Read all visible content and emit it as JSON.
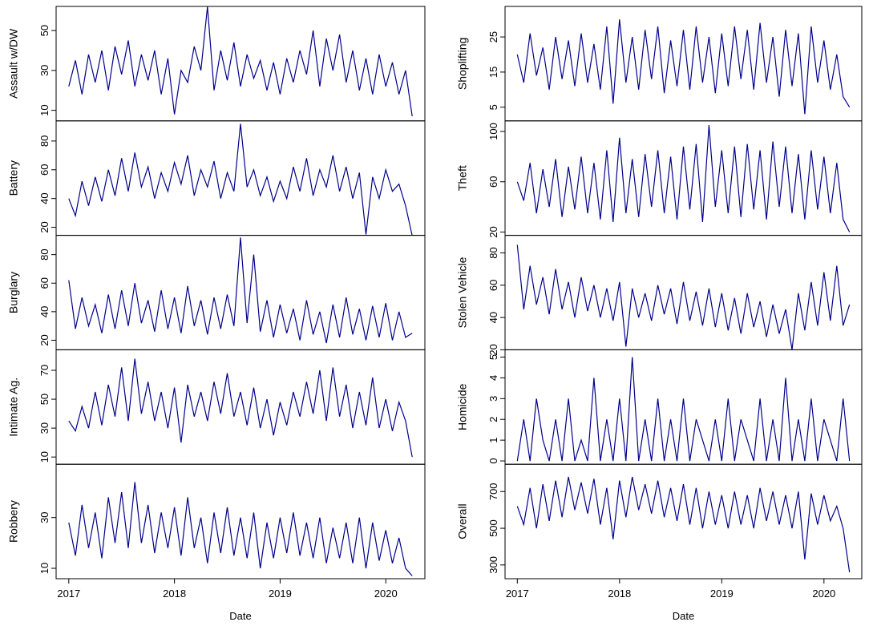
{
  "chart_data": [
    {
      "type": "line",
      "ylabel": "Assault w/DW",
      "color": "#00008b",
      "xlim": [
        2016.88,
        2020.37
      ],
      "ylim": [
        4.7,
        62.1
      ],
      "yticks": [
        10,
        30,
        50
      ],
      "x": [
        2017,
        2017.0625,
        2017.125,
        2017.1875,
        2017.25,
        2017.3125,
        2017.375,
        2017.4375,
        2017.5,
        2017.5625,
        2017.625,
        2017.6875,
        2017.75,
        2017.8125,
        2017.875,
        2017.9375,
        2018,
        2018.0625,
        2018.125,
        2018.1875,
        2018.25,
        2018.3125,
        2018.375,
        2018.4375,
        2018.5,
        2018.5625,
        2018.625,
        2018.6875,
        2018.75,
        2018.8125,
        2018.875,
        2018.9375,
        2019,
        2019.0625,
        2019.125,
        2019.1875,
        2019.25,
        2019.3125,
        2019.375,
        2019.4375,
        2019.5,
        2019.5625,
        2019.625,
        2019.6875,
        2019.75,
        2019.8125,
        2019.875,
        2019.9375,
        2020,
        2020.0625,
        2020.125,
        2020.1875,
        2020.25
      ],
      "values": [
        22,
        35,
        18,
        38,
        24,
        40,
        20,
        42,
        28,
        45,
        22,
        38,
        25,
        40,
        18,
        36,
        8,
        30,
        24,
        42,
        30,
        62,
        20,
        40,
        25,
        44,
        22,
        38,
        26,
        35,
        20,
        34,
        18,
        36,
        24,
        40,
        28,
        50,
        22,
        46,
        30,
        48,
        24,
        40,
        20,
        36,
        18,
        38,
        22,
        34,
        18,
        30,
        7
      ]
    },
    {
      "type": "line",
      "ylabel": "Battery",
      "color": "#00008b",
      "xlim": [
        2016.88,
        2020.37
      ],
      "ylim": [
        14.4,
        94
      ],
      "yticks": [
        20,
        40,
        60,
        80
      ],
      "x": [
        2017,
        2017.0625,
        2017.125,
        2017.1875,
        2017.25,
        2017.3125,
        2017.375,
        2017.4375,
        2017.5,
        2017.5625,
        2017.625,
        2017.6875,
        2017.75,
        2017.8125,
        2017.875,
        2017.9375,
        2018,
        2018.0625,
        2018.125,
        2018.1875,
        2018.25,
        2018.3125,
        2018.375,
        2018.4375,
        2018.5,
        2018.5625,
        2018.625,
        2018.6875,
        2018.75,
        2018.8125,
        2018.875,
        2018.9375,
        2019,
        2019.0625,
        2019.125,
        2019.1875,
        2019.25,
        2019.3125,
        2019.375,
        2019.4375,
        2019.5,
        2019.5625,
        2019.625,
        2019.6875,
        2019.75,
        2019.8125,
        2019.875,
        2019.9375,
        2020,
        2020.0625,
        2020.125,
        2020.1875,
        2020.25
      ],
      "values": [
        40,
        28,
        52,
        35,
        55,
        38,
        60,
        42,
        68,
        45,
        72,
        48,
        62,
        40,
        58,
        45,
        65,
        50,
        70,
        42,
        60,
        48,
        66,
        40,
        58,
        45,
        92,
        48,
        60,
        42,
        55,
        38,
        52,
        40,
        62,
        45,
        68,
        42,
        60,
        48,
        70,
        45,
        62,
        40,
        58,
        15,
        55,
        40,
        60,
        45,
        50,
        35,
        14
      ]
    },
    {
      "type": "line",
      "ylabel": "Burglary",
      "color": "#00008b",
      "xlim": [
        2016.88,
        2020.37
      ],
      "ylim": [
        13.3,
        93.5
      ],
      "yticks": [
        20,
        40,
        60,
        80
      ],
      "x": [
        2017,
        2017.0625,
        2017.125,
        2017.1875,
        2017.25,
        2017.3125,
        2017.375,
        2017.4375,
        2017.5,
        2017.5625,
        2017.625,
        2017.6875,
        2017.75,
        2017.8125,
        2017.875,
        2017.9375,
        2018,
        2018.0625,
        2018.125,
        2018.1875,
        2018.25,
        2018.3125,
        2018.375,
        2018.4375,
        2018.5,
        2018.5625,
        2018.625,
        2018.6875,
        2018.75,
        2018.8125,
        2018.875,
        2018.9375,
        2019,
        2019.0625,
        2019.125,
        2019.1875,
        2019.25,
        2019.3125,
        2019.375,
        2019.4375,
        2019.5,
        2019.5625,
        2019.625,
        2019.6875,
        2019.75,
        2019.8125,
        2019.875,
        2019.9375,
        2020,
        2020.0625,
        2020.125,
        2020.1875,
        2020.25
      ],
      "values": [
        62,
        28,
        50,
        30,
        45,
        25,
        52,
        28,
        55,
        30,
        60,
        32,
        48,
        26,
        55,
        28,
        50,
        25,
        58,
        30,
        48,
        24,
        50,
        28,
        52,
        30,
        92,
        32,
        80,
        26,
        48,
        22,
        45,
        25,
        42,
        20,
        48,
        24,
        40,
        18,
        45,
        22,
        50,
        24,
        42,
        20,
        44,
        22,
        46,
        20,
        40,
        22,
        25
      ]
    },
    {
      "type": "line",
      "ylabel": "Intimate Ag.",
      "color": "#00008b",
      "xlim": [
        2016.88,
        2020.37
      ],
      "ylim": [
        5,
        84.2
      ],
      "yticks": [
        10,
        30,
        50,
        70
      ],
      "x": [
        2017,
        2017.0625,
        2017.125,
        2017.1875,
        2017.25,
        2017.3125,
        2017.375,
        2017.4375,
        2017.5,
        2017.5625,
        2017.625,
        2017.6875,
        2017.75,
        2017.8125,
        2017.875,
        2017.9375,
        2018,
        2018.0625,
        2018.125,
        2018.1875,
        2018.25,
        2018.3125,
        2018.375,
        2018.4375,
        2018.5,
        2018.5625,
        2018.625,
        2018.6875,
        2018.75,
        2018.8125,
        2018.875,
        2018.9375,
        2019,
        2019.0625,
        2019.125,
        2019.1875,
        2019.25,
        2019.3125,
        2019.375,
        2019.4375,
        2019.5,
        2019.5625,
        2019.625,
        2019.6875,
        2019.75,
        2019.8125,
        2019.875,
        2019.9375,
        2020,
        2020.0625,
        2020.125,
        2020.1875,
        2020.25
      ],
      "values": [
        35,
        28,
        45,
        30,
        55,
        32,
        60,
        38,
        72,
        35,
        78,
        40,
        62,
        35,
        55,
        30,
        58,
        20,
        60,
        38,
        55,
        35,
        62,
        40,
        68,
        38,
        55,
        32,
        58,
        30,
        50,
        25,
        48,
        32,
        55,
        38,
        62,
        40,
        70,
        35,
        72,
        38,
        60,
        30,
        55,
        32,
        65,
        30,
        50,
        28,
        48,
        35,
        10
      ]
    },
    {
      "type": "line",
      "ylabel": "Robbery",
      "xlabel": "Date",
      "color": "#00008b",
      "xlim": [
        2016.88,
        2020.37
      ],
      "ylim": [
        5.9,
        51
      ],
      "yticks": [
        10,
        30
      ],
      "xticks": [
        2017,
        2018,
        2019,
        2020
      ],
      "x": [
        2017,
        2017.0625,
        2017.125,
        2017.1875,
        2017.25,
        2017.3125,
        2017.375,
        2017.4375,
        2017.5,
        2017.5625,
        2017.625,
        2017.6875,
        2017.75,
        2017.8125,
        2017.875,
        2017.9375,
        2018,
        2018.0625,
        2018.125,
        2018.1875,
        2018.25,
        2018.3125,
        2018.375,
        2018.4375,
        2018.5,
        2018.5625,
        2018.625,
        2018.6875,
        2018.75,
        2018.8125,
        2018.875,
        2018.9375,
        2019,
        2019.0625,
        2019.125,
        2019.1875,
        2019.25,
        2019.3125,
        2019.375,
        2019.4375,
        2019.5,
        2019.5625,
        2019.625,
        2019.6875,
        2019.75,
        2019.8125,
        2019.875,
        2019.9375,
        2020,
        2020.0625,
        2020.125,
        2020.1875,
        2020.25
      ],
      "values": [
        28,
        15,
        35,
        18,
        32,
        14,
        38,
        20,
        40,
        18,
        44,
        20,
        35,
        16,
        32,
        18,
        34,
        15,
        38,
        18,
        30,
        12,
        32,
        16,
        34,
        15,
        30,
        14,
        32,
        10,
        28,
        14,
        30,
        16,
        32,
        15,
        28,
        14,
        30,
        12,
        26,
        14,
        28,
        12,
        30,
        10,
        28,
        13,
        25,
        12,
        22,
        10,
        7
      ]
    },
    {
      "type": "line",
      "ylabel": "Shoplifting",
      "color": "#00008b",
      "xlim": [
        2016.88,
        2020.37
      ],
      "ylim": [
        1.1,
        33.7
      ],
      "yticks": [
        5,
        15,
        25
      ],
      "x": [
        2017,
        2017.0625,
        2017.125,
        2017.1875,
        2017.25,
        2017.3125,
        2017.375,
        2017.4375,
        2017.5,
        2017.5625,
        2017.625,
        2017.6875,
        2017.75,
        2017.8125,
        2017.875,
        2017.9375,
        2018,
        2018.0625,
        2018.125,
        2018.1875,
        2018.25,
        2018.3125,
        2018.375,
        2018.4375,
        2018.5,
        2018.5625,
        2018.625,
        2018.6875,
        2018.75,
        2018.8125,
        2018.875,
        2018.9375,
        2019,
        2019.0625,
        2019.125,
        2019.1875,
        2019.25,
        2019.3125,
        2019.375,
        2019.4375,
        2019.5,
        2019.5625,
        2019.625,
        2019.6875,
        2019.75,
        2019.8125,
        2019.875,
        2019.9375,
        2020,
        2020.0625,
        2020.125,
        2020.1875,
        2020.25
      ],
      "values": [
        20,
        12,
        26,
        14,
        22,
        10,
        25,
        13,
        24,
        11,
        26,
        12,
        23,
        10,
        28,
        6,
        30,
        12,
        25,
        10,
        27,
        13,
        28,
        9,
        24,
        11,
        27,
        10,
        28,
        12,
        25,
        9,
        26,
        11,
        28,
        13,
        27,
        10,
        29,
        12,
        25,
        8,
        27,
        11,
        26,
        3,
        28,
        12,
        24,
        10,
        20,
        8,
        5
      ]
    },
    {
      "type": "line",
      "ylabel": "Theft",
      "color": "#00008b",
      "xlim": [
        2016.88,
        2020.37
      ],
      "ylim": [
        17.4,
        108.4
      ],
      "yticks": [
        20,
        60,
        100
      ],
      "x": [
        2017,
        2017.0625,
        2017.125,
        2017.1875,
        2017.25,
        2017.3125,
        2017.375,
        2017.4375,
        2017.5,
        2017.5625,
        2017.625,
        2017.6875,
        2017.75,
        2017.8125,
        2017.875,
        2017.9375,
        2018,
        2018.0625,
        2018.125,
        2018.1875,
        2018.25,
        2018.3125,
        2018.375,
        2018.4375,
        2018.5,
        2018.5625,
        2018.625,
        2018.6875,
        2018.75,
        2018.8125,
        2018.875,
        2018.9375,
        2019,
        2019.0625,
        2019.125,
        2019.1875,
        2019.25,
        2019.3125,
        2019.375,
        2019.4375,
        2019.5,
        2019.5625,
        2019.625,
        2019.6875,
        2019.75,
        2019.8125,
        2019.875,
        2019.9375,
        2020,
        2020.0625,
        2020.125,
        2020.1875,
        2020.25
      ],
      "values": [
        60,
        45,
        75,
        35,
        70,
        40,
        78,
        32,
        72,
        38,
        80,
        35,
        75,
        30,
        85,
        28,
        95,
        35,
        78,
        32,
        82,
        40,
        85,
        35,
        80,
        30,
        88,
        38,
        90,
        28,
        105,
        40,
        85,
        35,
        88,
        32,
        90,
        38,
        85,
        30,
        92,
        40,
        88,
        35,
        82,
        30,
        85,
        38,
        80,
        35,
        75,
        30,
        20
      ]
    },
    {
      "type": "line",
      "ylabel": "Stolen Vehicle",
      "color": "#00008b",
      "xlim": [
        2016.88,
        2020.37
      ],
      "ylim": [
        20,
        90.9
      ],
      "yticks": [
        20,
        40,
        60,
        80
      ],
      "x": [
        2017,
        2017.0625,
        2017.125,
        2017.1875,
        2017.25,
        2017.3125,
        2017.375,
        2017.4375,
        2017.5,
        2017.5625,
        2017.625,
        2017.6875,
        2017.75,
        2017.8125,
        2017.875,
        2017.9375,
        2018,
        2018.0625,
        2018.125,
        2018.1875,
        2018.25,
        2018.3125,
        2018.375,
        2018.4375,
        2018.5,
        2018.5625,
        2018.625,
        2018.6875,
        2018.75,
        2018.8125,
        2018.875,
        2018.9375,
        2019,
        2019.0625,
        2019.125,
        2019.1875,
        2019.25,
        2019.3125,
        2019.375,
        2019.4375,
        2019.5,
        2019.5625,
        2019.625,
        2019.6875,
        2019.75,
        2019.8125,
        2019.875,
        2019.9375,
        2020,
        2020.0625,
        2020.125,
        2020.1875,
        2020.25
      ],
      "values": [
        85,
        45,
        72,
        48,
        65,
        42,
        70,
        45,
        62,
        40,
        65,
        44,
        60,
        40,
        58,
        38,
        62,
        22,
        58,
        40,
        55,
        38,
        60,
        42,
        58,
        36,
        62,
        38,
        56,
        35,
        58,
        34,
        55,
        32,
        52,
        30,
        55,
        34,
        50,
        28,
        48,
        30,
        45,
        20,
        55,
        32,
        62,
        35,
        68,
        38,
        72,
        35,
        48
      ]
    },
    {
      "type": "line",
      "ylabel": "Homicide",
      "color": "#00008b",
      "xlim": [
        2016.88,
        2020.37
      ],
      "ylim": [
        -0.16,
        5.35
      ],
      "yticks": [
        0,
        1,
        2,
        3,
        4,
        5
      ],
      "x": [
        2017,
        2017.0625,
        2017.125,
        2017.1875,
        2017.25,
        2017.3125,
        2017.375,
        2017.4375,
        2017.5,
        2017.5625,
        2017.625,
        2017.6875,
        2017.75,
        2017.8125,
        2017.875,
        2017.9375,
        2018,
        2018.0625,
        2018.125,
        2018.1875,
        2018.25,
        2018.3125,
        2018.375,
        2018.4375,
        2018.5,
        2018.5625,
        2018.625,
        2018.6875,
        2018.75,
        2018.8125,
        2018.875,
        2018.9375,
        2019,
        2019.0625,
        2019.125,
        2019.1875,
        2019.25,
        2019.3125,
        2019.375,
        2019.4375,
        2019.5,
        2019.5625,
        2019.625,
        2019.6875,
        2019.75,
        2019.8125,
        2019.875,
        2019.9375,
        2020,
        2020.0625,
        2020.125,
        2020.1875,
        2020.25
      ],
      "values": [
        0,
        2,
        0,
        3,
        1,
        0,
        2,
        0,
        3,
        0,
        1,
        0,
        4,
        0,
        2,
        0,
        3,
        0,
        5,
        0,
        2,
        0,
        3,
        0,
        2,
        0,
        3,
        0,
        2,
        1,
        0,
        2,
        0,
        3,
        0,
        2,
        1,
        0,
        3,
        0,
        2,
        0,
        4,
        0,
        2,
        0,
        3,
        0,
        2,
        1,
        0,
        3,
        0
      ]
    },
    {
      "type": "line",
      "ylabel": "Overall",
      "xlabel": "Date",
      "color": "#00008b",
      "xlim": [
        2016.88,
        2020.37
      ],
      "ylim": [
        225,
        849
      ],
      "yticks": [
        300,
        500,
        700
      ],
      "xticks": [
        2017,
        2018,
        2019,
        2020
      ],
      "x": [
        2017,
        2017.0625,
        2017.125,
        2017.1875,
        2017.25,
        2017.3125,
        2017.375,
        2017.4375,
        2017.5,
        2017.5625,
        2017.625,
        2017.6875,
        2017.75,
        2017.8125,
        2017.875,
        2017.9375,
        2018,
        2018.0625,
        2018.125,
        2018.1875,
        2018.25,
        2018.3125,
        2018.375,
        2018.4375,
        2018.5,
        2018.5625,
        2018.625,
        2018.6875,
        2018.75,
        2018.8125,
        2018.875,
        2018.9375,
        2019,
        2019.0625,
        2019.125,
        2019.1875,
        2019.25,
        2019.3125,
        2019.375,
        2019.4375,
        2019.5,
        2019.5625,
        2019.625,
        2019.6875,
        2019.75,
        2019.8125,
        2019.875,
        2019.9375,
        2020,
        2020.0625,
        2020.125,
        2020.1875,
        2020.25
      ],
      "values": [
        620,
        520,
        720,
        500,
        740,
        540,
        760,
        560,
        780,
        600,
        750,
        580,
        770,
        520,
        720,
        440,
        760,
        560,
        780,
        600,
        740,
        580,
        760,
        560,
        720,
        540,
        740,
        520,
        720,
        500,
        700,
        520,
        680,
        500,
        700,
        520,
        680,
        500,
        720,
        540,
        700,
        520,
        680,
        500,
        700,
        330,
        690,
        520,
        680,
        540,
        620,
        500,
        260
      ]
    }
  ]
}
